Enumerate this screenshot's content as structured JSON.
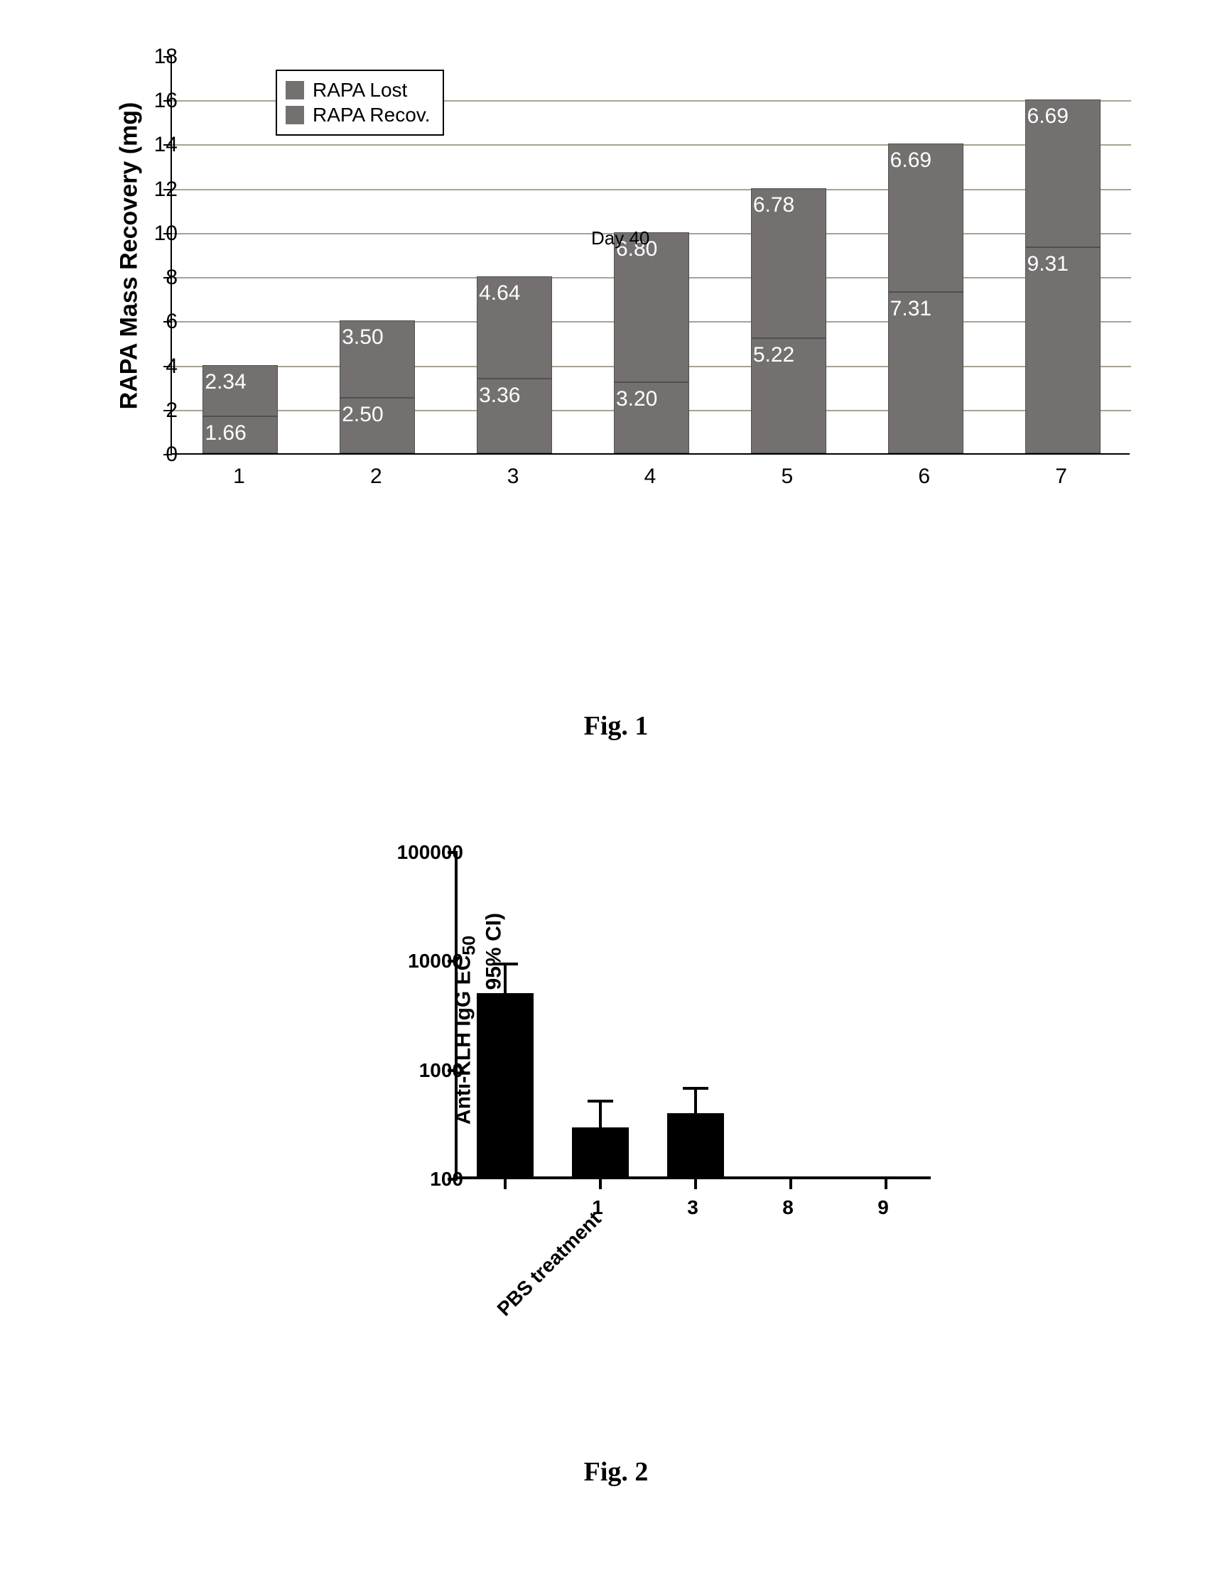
{
  "fig1": {
    "type": "stacked-bar",
    "ylabel": "RAPA Mass Recovery (mg)",
    "ylim": [
      0,
      18
    ],
    "ytick_step": 2,
    "categories": [
      "1",
      "2",
      "3",
      "4",
      "5",
      "6",
      "7"
    ],
    "series": [
      {
        "name": "RAPA Lost",
        "color": "#757070"
      },
      {
        "name": "RAPA Recov.",
        "color": "#757070"
      }
    ],
    "lower": [
      1.66,
      2.5,
      3.36,
      3.2,
      5.22,
      7.31,
      9.31
    ],
    "upper": [
      2.34,
      3.5,
      4.64,
      6.8,
      6.78,
      6.69,
      6.69
    ],
    "lower_labels": [
      "1.66",
      "2.50",
      "3.36",
      "3.20",
      "5.22",
      "7.31",
      "9.31"
    ],
    "upper_labels": [
      "2.34",
      "3.50",
      "4.64",
      "6.80",
      "6.78",
      "6.69",
      "6.69"
    ],
    "annotation": "Day 40",
    "bar_width": 0.55,
    "grid_color": "#a9a293",
    "background_color": "#ffffff",
    "text_color": "#000000",
    "bar_label_color": "#ffffff",
    "label_fontsize": 30,
    "ylabel_fontsize": 34
  },
  "fig2": {
    "type": "bar-log",
    "ylabel_line1": "Anti-KLH IgG EC",
    "ylabel_sub": "50",
    "ylabel_line2": "(Geom. Mean ± 95% CI)",
    "yscale": "log",
    "ylim": [
      100,
      100000
    ],
    "yticks": [
      100,
      1000,
      10000,
      100000
    ],
    "ytick_labels": [
      "100",
      "1000",
      "10000",
      "100000"
    ],
    "categories": [
      "PBS treatment",
      "1",
      "3",
      "8",
      "9"
    ],
    "values": [
      4800,
      280,
      380,
      0,
      0
    ],
    "err_upper": [
      9500,
      520,
      680,
      0,
      0
    ],
    "bar_color": "#000000",
    "background_color": "#ffffff",
    "label_fontsize": 28,
    "bar_width": 0.6,
    "err_cap_width": 36
  },
  "captions": {
    "fig1": "Fig. 1",
    "fig2": "Fig. 2"
  }
}
